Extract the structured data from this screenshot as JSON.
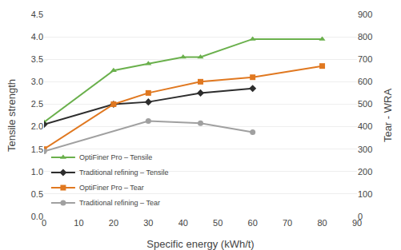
{
  "chart_data": {
    "type": "line",
    "xlabel": "Specific energy (kWh/t)",
    "ylabel": "Tensile strength",
    "y2label": "Tear - WRA",
    "xlim": [
      0,
      90
    ],
    "xticks": [
      0,
      10,
      20,
      30,
      40,
      50,
      60,
      70,
      80,
      90
    ],
    "ylim": [
      0,
      4.5
    ],
    "yticks": [
      {
        "value": 0,
        "label": "0.0"
      },
      0.5,
      {
        "value": 1,
        "label": "1.0"
      },
      1.5,
      {
        "value": 2,
        "label": "2.0"
      },
      2.5,
      {
        "value": 3,
        "label": "3.0"
      },
      3.5,
      {
        "value": 4,
        "label": "4.0"
      },
      4.5
    ],
    "y2lim": [
      0,
      900
    ],
    "y2ticks": [
      0,
      100,
      200,
      300,
      400,
      500,
      600,
      700,
      800,
      900
    ],
    "grid": "y",
    "legend": "lower left",
    "series": [
      {
        "name": "OptiFiner Pro – Tensile",
        "color": "#6ab04c",
        "marker": "triangle-up",
        "axis": "y",
        "x": [
          0,
          20,
          30,
          40,
          45,
          60,
          80
        ],
        "values": [
          2.1,
          3.25,
          3.4,
          3.55,
          3.55,
          3.95,
          3.95
        ]
      },
      {
        "name": "Traditional refining – Tensile",
        "color": "#2d2d2d",
        "marker": "diamond",
        "axis": "y",
        "x": [
          0,
          20,
          30,
          45,
          60
        ],
        "values": [
          2.05,
          2.5,
          2.55,
          2.75,
          2.85
        ]
      },
      {
        "name": "OptiFiner Pro – Tear",
        "color": "#e07820",
        "marker": "square",
        "axis": "y2",
        "x": [
          0,
          20,
          30,
          45,
          60,
          80
        ],
        "values": [
          300,
          500,
          550,
          600,
          620,
          670
        ]
      },
      {
        "name": "Traditional refining – Tear",
        "color": "#a0a0a0",
        "marker": "circle",
        "axis": "y2",
        "x": [
          0,
          30,
          45,
          60
        ],
        "values": [
          290,
          425,
          415,
          375
        ]
      }
    ]
  }
}
